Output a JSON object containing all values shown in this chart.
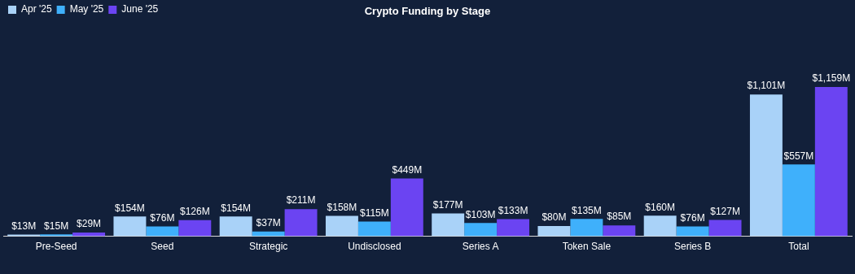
{
  "chart_data": {
    "type": "bar",
    "title": "Crypto Funding by Stage",
    "categories": [
      "Pre-Seed",
      "Seed",
      "Strategic",
      "Undisclosed",
      "Series A",
      "Token Sale",
      "Series B",
      "Total"
    ],
    "series": [
      {
        "name": "Apr '25",
        "color": "#a9d2f8",
        "values": [
          13,
          154,
          154,
          158,
          177,
          80,
          160,
          1101
        ],
        "value_labels": [
          "$13M",
          "$154M",
          "$154M",
          "$158M",
          "$177M",
          "$80M",
          "$160M",
          "$1,101M"
        ]
      },
      {
        "name": "May '25",
        "color": "#3fb0fb",
        "values": [
          15,
          76,
          37,
          115,
          103,
          135,
          76,
          557
        ],
        "value_labels": [
          "$15M",
          "$76M",
          "$37M",
          "$115M",
          "$103M",
          "$135M",
          "$76M",
          "$557M"
        ]
      },
      {
        "name": "June '25",
        "color": "#6b44f2",
        "values": [
          29,
          126,
          211,
          449,
          133,
          85,
          127,
          1159
        ],
        "value_labels": [
          "$29M",
          "$126M",
          "$211M",
          "$449M",
          "$133M",
          "$85M",
          "$127M",
          "$1,159M"
        ]
      }
    ],
    "legend": "top left",
    "grid": false
  }
}
